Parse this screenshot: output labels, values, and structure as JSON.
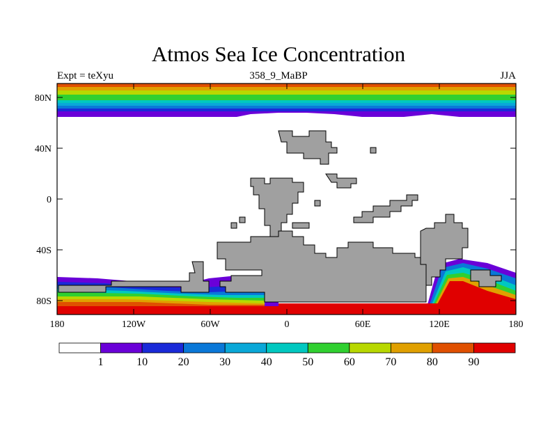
{
  "title": "Atmos Sea Ice Concentration",
  "subtitle_left": "Expt = teXyu",
  "subtitle_center": "358_9_MaBP",
  "subtitle_right": "JJA",
  "axes": {
    "x_ticks": [
      "180",
      "120W",
      "60W",
      "0",
      "60E",
      "120E",
      "180"
    ],
    "y_ticks": [
      "80N",
      "40N",
      "0",
      "40S",
      "80S"
    ]
  },
  "legend": {
    "labels": [
      "1",
      "10",
      "20",
      "30",
      "40",
      "50",
      "60",
      "70",
      "80",
      "90"
    ],
    "colors": [
      "#ffffff",
      "#6a00d8",
      "#1a2ad8",
      "#0a78d8",
      "#0aa8d8",
      "#00c8c0",
      "#30d030",
      "#b8d800",
      "#e0a000",
      "#e05000",
      "#e00000"
    ]
  },
  "colors": {
    "land": "#a0a0a0",
    "ocean_no_ice": "#ffffff"
  }
}
